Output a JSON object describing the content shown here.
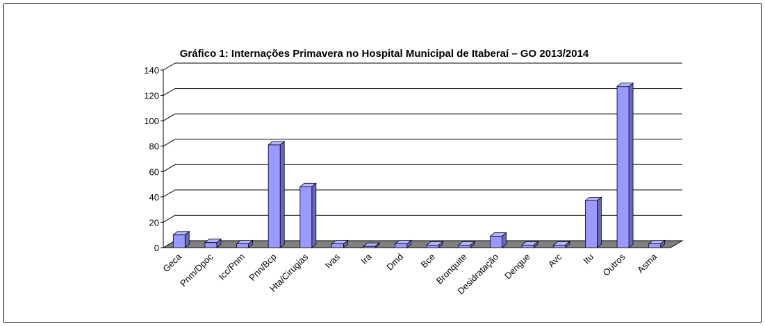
{
  "chart_data": {
    "type": "bar3d",
    "title": "Gráfico 1: Internações Primavera no Hospital Municipal de Itaberaí – GO 2013/2014",
    "categories": [
      "Geca",
      "Pnm/Dpoc",
      "Icc/Pnm",
      "Pnn/Bcp",
      "Hta/Cirugias",
      "Ivas",
      "Ira",
      "Dmd",
      "Bce",
      "Bronquite",
      "Desidratação",
      "Dengue",
      "Avc",
      "Itu",
      "Outros",
      "Asma"
    ],
    "values": [
      10,
      4,
      3,
      81,
      48,
      3,
      1,
      3,
      2,
      2,
      9,
      2,
      2,
      37,
      127,
      3
    ],
    "color": "#9999ff",
    "ylim": [
      0,
      140
    ],
    "yticks": [
      0,
      20,
      40,
      60,
      80,
      100,
      120,
      140
    ],
    "grid": true
  }
}
